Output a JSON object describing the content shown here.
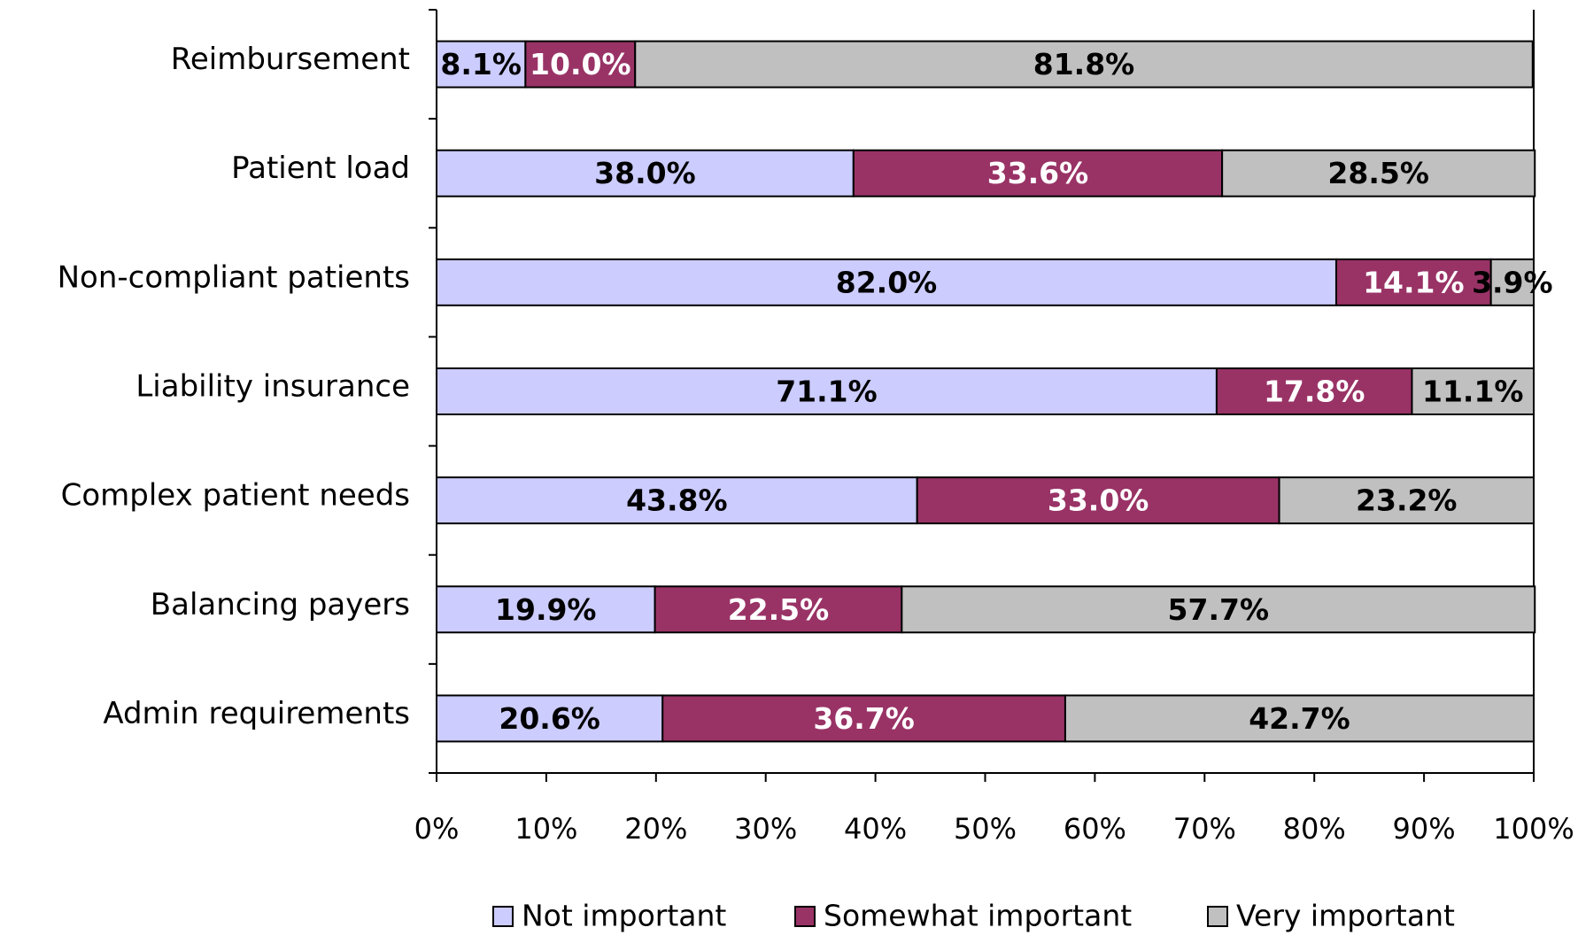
{
  "chart_data": {
    "type": "stacked-bar-horizontal",
    "categories": [
      "Reimbursement",
      "Patient load",
      "Non-compliant patients",
      "Liability insurance",
      "Complex patient needs",
      "Balancing payers",
      "Admin requirements"
    ],
    "series": [
      {
        "name": "Not important",
        "color": "#ccccff",
        "label_color": "#000000",
        "values": [
          8.1,
          38.0,
          82.0,
          71.1,
          43.8,
          19.9,
          20.6
        ],
        "value_labels": [
          "8.1%",
          "38.0%",
          "82.0%",
          "71.1%",
          "43.8%",
          "19.9%",
          "20.6%"
        ]
      },
      {
        "name": "Somewhat important",
        "color": "#993366",
        "label_color": "#ffffff",
        "values": [
          10.0,
          33.6,
          14.1,
          17.8,
          33.0,
          22.5,
          36.7
        ],
        "value_labels": [
          "10.0%",
          "33.6%",
          "14.1%",
          "17.8%",
          "33.0%",
          "22.5%",
          "36.7%"
        ]
      },
      {
        "name": "Very important",
        "color": "#c0c0c0",
        "label_color": "#000000",
        "values": [
          81.8,
          28.5,
          3.9,
          11.1,
          23.2,
          57.7,
          42.7
        ],
        "value_labels": [
          "81.8%",
          "28.5%",
          "3.9%",
          "11.1%",
          "23.2%",
          "57.7%",
          "42.7%"
        ]
      }
    ],
    "xlim": [
      0,
      100
    ],
    "xticks": [
      {
        "value": 0,
        "label": "0%"
      },
      {
        "value": 10,
        "label": "10%"
      },
      {
        "value": 20,
        "label": "20%"
      },
      {
        "value": 30,
        "label": "30%"
      },
      {
        "value": 40,
        "label": "40%"
      },
      {
        "value": 50,
        "label": "50%"
      },
      {
        "value": 60,
        "label": "60%"
      },
      {
        "value": 70,
        "label": "70%"
      },
      {
        "value": 80,
        "label": "80%"
      },
      {
        "value": 90,
        "label": "90%"
      },
      {
        "value": 100,
        "label": "100%"
      }
    ],
    "legend": "bottom"
  }
}
